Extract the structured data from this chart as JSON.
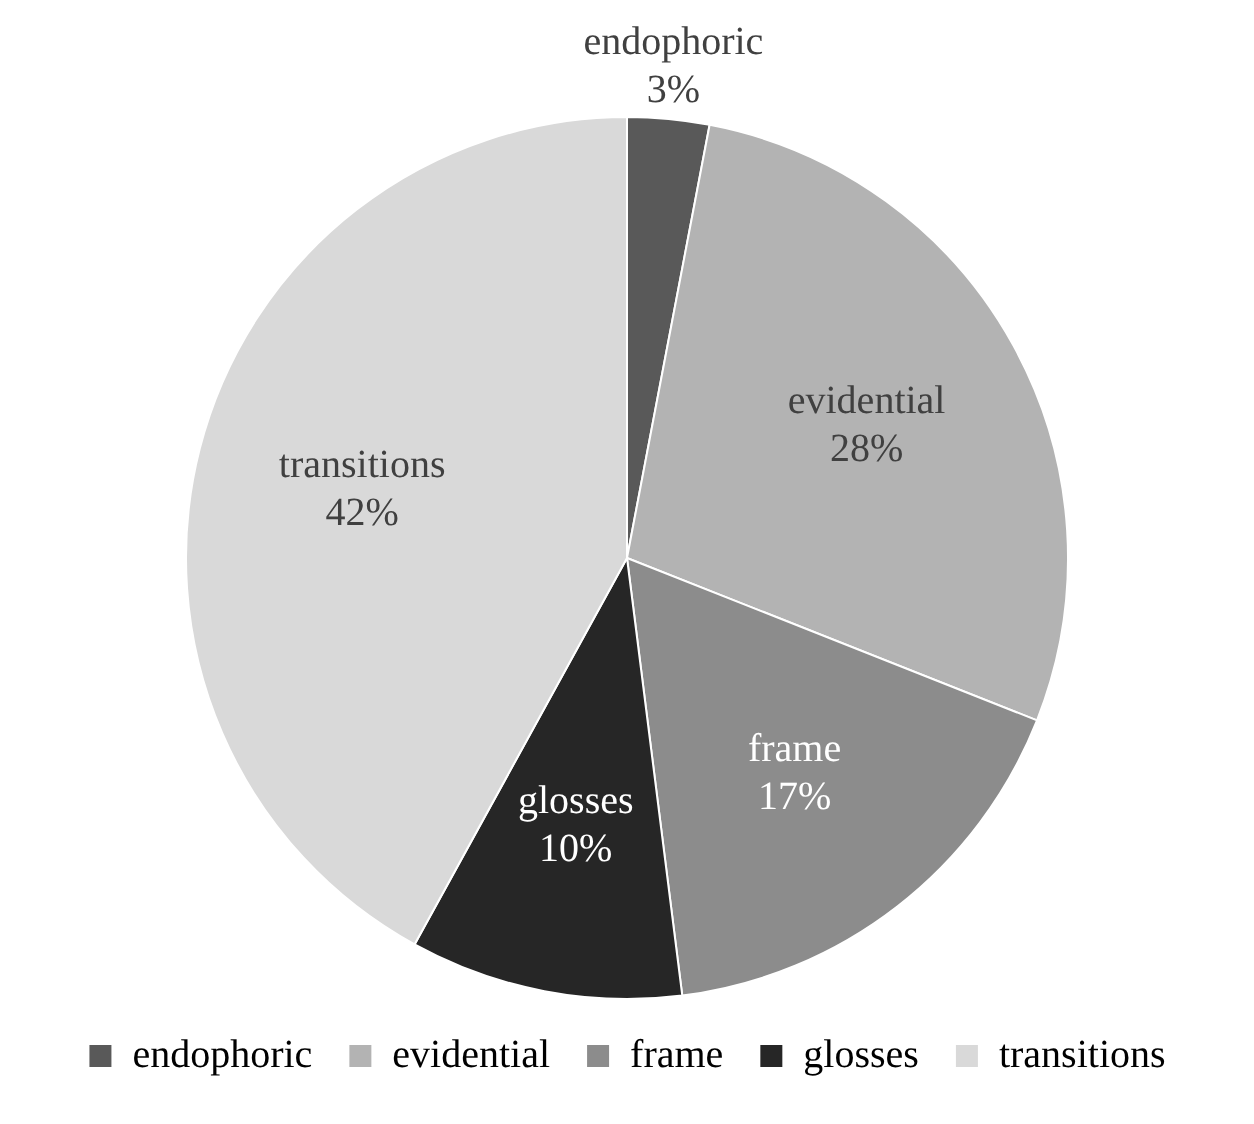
{
  "chart_data": {
    "type": "pie",
    "categories": [
      "endophoric",
      "evidential",
      "frame",
      "glosses",
      "transitions"
    ],
    "values": [
      3,
      28,
      17,
      10,
      42
    ],
    "colors": [
      "#595959",
      "#b3b3b3",
      "#8c8c8c",
      "#262626",
      "#d9d9d9"
    ],
    "value_labels": [
      "3%",
      "28%",
      "17%",
      "10%",
      "42%"
    ],
    "legend": "bottom"
  }
}
